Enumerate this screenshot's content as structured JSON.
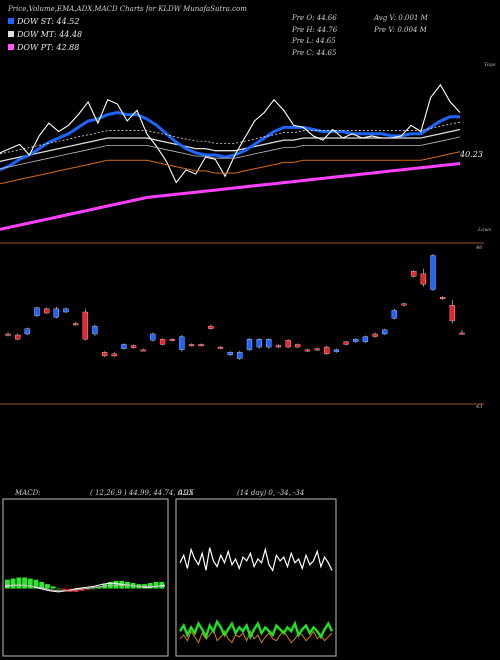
{
  "header": {
    "title": "Price,Volume,EMA,ADX,MACD Charts for KLDW MunafaSutra.com",
    "dow_st": "DOW ST: 44.52",
    "dow_mt": "DOW MT: 44.48",
    "dow_pt": "DOW PT: 42.88",
    "pre_o": "Pre  O: 44.66",
    "pre_h": "Pre  H: 44.76",
    "pre_l": "Pre  L: 44.65",
    "pre_c": "Pre  C: 44.65",
    "avg_v": "Avg V: 0.001 M",
    "pre_v": "Pre  V: 0.004  M"
  },
  "colors": {
    "dow_st": "#1e64ff",
    "dow_mt": "#dddddd",
    "dow_pt": "#ff55ff",
    "up_candle": "#1e64ff",
    "down_candle": "#e8242c",
    "price_line": "#ffffff",
    "ema_blue": "#1e64ff",
    "ema_magenta": "#ff40ff",
    "ema_orange": "#d56a1a",
    "divider": "#a0521a",
    "macd_hist": "#2ce82c",
    "adx_green": "#22e022",
    "adx_orange": "#d57a1a"
  },
  "price_panel": {
    "top_label": "Tops",
    "low_label": "Lows",
    "last_label": "40.23",
    "tick_top": "46",
    "tick_bottom": "43"
  },
  "chart_data": [
    {
      "type": "line",
      "title": "Price,Volume,EMA,ADX,MACD Charts for KLDW MunafaSutra.com",
      "series": [
        {
          "name": "Price",
          "values": [
            40.6,
            40.8,
            41.0,
            40.5,
            41.4,
            42.0,
            41.6,
            41.9,
            42.4,
            43.0,
            42.0,
            43.1,
            42.9,
            42.1,
            42.6,
            41.5,
            40.9,
            40.2,
            39.2,
            39.8,
            39.6,
            40.4,
            40.3,
            39.5,
            40.5,
            41.3,
            42.1,
            42.5,
            43.1,
            42.6,
            41.9,
            41.8,
            41.4,
            41.2,
            41.7,
            41.3,
            41.5,
            41.3,
            41.4,
            41.3,
            41.3,
            41.4,
            41.9,
            41.6,
            43.2,
            43.8,
            43.0,
            42.5
          ]
        },
        {
          "name": "DOW ST",
          "values": [
            39.8,
            40.0,
            40.3,
            40.5,
            40.8,
            41.1,
            41.3,
            41.5,
            41.8,
            42.1,
            42.2,
            42.4,
            42.5,
            42.4,
            42.4,
            42.2,
            41.9,
            41.5,
            41.1,
            40.8,
            40.6,
            40.5,
            40.5,
            40.4,
            40.5,
            40.7,
            41.0,
            41.3,
            41.6,
            41.8,
            41.8,
            41.8,
            41.7,
            41.6,
            41.6,
            41.6,
            41.5,
            41.5,
            41.5,
            41.5,
            41.4,
            41.4,
            41.5,
            41.5,
            41.8,
            42.1,
            42.3,
            42.3
          ]
        },
        {
          "name": "DOW MT",
          "values": [
            40.2,
            40.3,
            40.4,
            40.5,
            40.6,
            40.7,
            40.8,
            40.9,
            41.0,
            41.1,
            41.2,
            41.3,
            41.3,
            41.3,
            41.3,
            41.3,
            41.2,
            41.1,
            41.0,
            40.9,
            40.8,
            40.8,
            40.7,
            40.7,
            40.7,
            40.8,
            40.9,
            41.0,
            41.1,
            41.2,
            41.2,
            41.3,
            41.3,
            41.3,
            41.3,
            41.3,
            41.3,
            41.3,
            41.3,
            41.3,
            41.3,
            41.3,
            41.3,
            41.3,
            41.4,
            41.5,
            41.6,
            41.7
          ]
        },
        {
          "name": "DOW PT",
          "values": [
            37.0,
            37.1,
            37.2,
            37.3,
            37.4,
            37.5,
            37.6,
            37.7,
            37.8,
            37.9,
            38.0,
            38.1,
            38.2,
            38.3,
            38.4,
            38.5,
            38.55,
            38.6,
            38.65,
            38.7,
            38.75,
            38.8,
            38.85,
            38.9,
            38.95,
            39.0,
            39.05,
            39.1,
            39.15,
            39.2,
            39.25,
            39.3,
            39.35,
            39.4,
            39.45,
            39.5,
            39.55,
            39.6,
            39.65,
            39.7,
            39.75,
            39.8,
            39.85,
            39.9,
            39.95,
            40.0,
            40.05,
            40.1
          ]
        }
      ],
      "ylim": [
        36.5,
        44.5
      ]
    },
    {
      "type": "bar",
      "title": "",
      "candles": [
        {
          "o": 44.3,
          "c": 44.28,
          "h": 44.33,
          "l": 44.25,
          "up": false
        },
        {
          "o": 44.2,
          "c": 44.28,
          "h": 44.31,
          "l": 44.18,
          "up": false
        },
        {
          "o": 44.4,
          "c": 44.3,
          "h": 44.42,
          "l": 44.28,
          "up": true
        },
        {
          "o": 44.8,
          "c": 44.65,
          "h": 44.82,
          "l": 44.62,
          "up": true
        },
        {
          "o": 44.78,
          "c": 44.7,
          "h": 44.8,
          "l": 44.68,
          "up": false
        },
        {
          "o": 44.78,
          "c": 44.62,
          "h": 44.82,
          "l": 44.6,
          "up": true
        },
        {
          "o": 44.78,
          "c": 44.72,
          "h": 44.8,
          "l": 44.7,
          "up": true
        },
        {
          "o": 44.5,
          "c": 44.48,
          "h": 44.53,
          "l": 44.46,
          "up": false
        },
        {
          "o": 44.72,
          "c": 44.2,
          "h": 44.78,
          "l": 44.18,
          "up": false
        },
        {
          "o": 44.45,
          "c": 44.3,
          "h": 44.48,
          "l": 44.26,
          "up": true
        },
        {
          "o": 43.95,
          "c": 43.88,
          "h": 43.97,
          "l": 43.86,
          "up": false
        },
        {
          "o": 43.92,
          "c": 43.88,
          "h": 43.95,
          "l": 43.86,
          "up": false
        },
        {
          "o": 44.1,
          "c": 44.02,
          "h": 44.12,
          "l": 44.0,
          "up": true
        },
        {
          "o": 44.08,
          "c": 44.04,
          "h": 44.1,
          "l": 44.02,
          "up": false
        },
        {
          "o": 44.0,
          "c": 44.0,
          "h": 44.02,
          "l": 43.98,
          "up": false
        },
        {
          "o": 44.3,
          "c": 44.18,
          "h": 44.33,
          "l": 44.16,
          "up": true
        },
        {
          "o": 44.2,
          "c": 44.1,
          "h": 44.22,
          "l": 44.08,
          "up": false
        },
        {
          "o": 44.2,
          "c": 44.18,
          "h": 44.22,
          "l": 44.16,
          "up": false
        },
        {
          "o": 44.25,
          "c": 44.0,
          "h": 44.28,
          "l": 43.96,
          "up": true
        },
        {
          "o": 44.1,
          "c": 44.08,
          "h": 44.12,
          "l": 44.06,
          "up": false
        },
        {
          "o": 44.1,
          "c": 44.08,
          "h": 44.12,
          "l": 44.06,
          "up": false
        },
        {
          "o": 44.45,
          "c": 44.4,
          "h": 44.48,
          "l": 44.38,
          "up": false
        },
        {
          "o": 44.05,
          "c": 44.03,
          "h": 44.07,
          "l": 44.01,
          "up": false
        },
        {
          "o": 43.95,
          "c": 43.9,
          "h": 43.97,
          "l": 43.88,
          "up": true
        },
        {
          "o": 43.95,
          "c": 43.83,
          "h": 43.98,
          "l": 43.8,
          "up": true
        },
        {
          "o": 44.2,
          "c": 44.0,
          "h": 44.22,
          "l": 43.98,
          "up": true
        },
        {
          "o": 44.2,
          "c": 44.05,
          "h": 44.22,
          "l": 44.02,
          "up": true
        },
        {
          "o": 44.2,
          "c": 44.05,
          "h": 44.22,
          "l": 44.02,
          "up": true
        },
        {
          "o": 44.08,
          "c": 44.05,
          "h": 44.1,
          "l": 44.03,
          "up": false
        },
        {
          "o": 44.18,
          "c": 44.05,
          "h": 44.2,
          "l": 44.03,
          "up": false
        },
        {
          "o": 44.1,
          "c": 44.05,
          "h": 44.12,
          "l": 44.03,
          "up": false
        },
        {
          "o": 44.0,
          "c": 43.98,
          "h": 44.02,
          "l": 43.96,
          "up": false
        },
        {
          "o": 44.02,
          "c": 44.0,
          "h": 44.04,
          "l": 43.98,
          "up": false
        },
        {
          "o": 44.05,
          "c": 43.92,
          "h": 44.08,
          "l": 43.9,
          "up": false
        },
        {
          "o": 44.0,
          "c": 43.96,
          "h": 44.02,
          "l": 43.94,
          "up": true
        },
        {
          "o": 44.15,
          "c": 44.1,
          "h": 44.17,
          "l": 44.08,
          "up": false
        },
        {
          "o": 44.2,
          "c": 44.15,
          "h": 44.22,
          "l": 44.13,
          "up": true
        },
        {
          "o": 44.25,
          "c": 44.15,
          "h": 44.27,
          "l": 44.13,
          "up": true
        },
        {
          "o": 44.3,
          "c": 44.25,
          "h": 44.33,
          "l": 44.23,
          "up": false
        },
        {
          "o": 44.38,
          "c": 44.3,
          "h": 44.4,
          "l": 44.28,
          "up": true
        },
        {
          "o": 44.75,
          "c": 44.6,
          "h": 44.78,
          "l": 44.58,
          "up": true
        },
        {
          "o": 44.88,
          "c": 44.85,
          "h": 44.9,
          "l": 44.83,
          "up": false
        },
        {
          "o": 45.5,
          "c": 45.4,
          "h": 45.52,
          "l": 45.38,
          "up": false
        },
        {
          "o": 45.45,
          "c": 45.25,
          "h": 45.55,
          "l": 45.2,
          "up": false
        },
        {
          "o": 45.8,
          "c": 45.15,
          "h": 45.83,
          "l": 45.12,
          "up": true
        },
        {
          "o": 45.0,
          "c": 44.97,
          "h": 45.02,
          "l": 44.95,
          "up": false
        },
        {
          "o": 44.85,
          "c": 44.55,
          "h": 44.95,
          "l": 44.5,
          "up": false
        },
        {
          "o": 44.32,
          "c": 44.32,
          "h": 44.38,
          "l": 44.3,
          "up": false
        }
      ],
      "ylim": [
        43.0,
        46.0
      ]
    },
    {
      "type": "line",
      "title": "MACD:",
      "subtitle": "( 12,26,9 ) 44.99,  44.74,  0.25",
      "series": [
        {
          "name": "MACD",
          "values": [
            0.02,
            0.03,
            0.03,
            0.02,
            0.0,
            -0.02,
            -0.03,
            -0.02,
            0.0,
            0.01,
            0.02,
            0.04,
            0.05,
            0.04,
            0.03,
            0.02,
            0.01,
            0.02,
            0.03
          ]
        },
        {
          "name": "Signal",
          "values": [
            0.03,
            0.03,
            0.03,
            0.02,
            0.01,
            -0.01,
            -0.02,
            -0.02,
            -0.01,
            0.0,
            0.01,
            0.02,
            0.03,
            0.03,
            0.03,
            0.02,
            0.02,
            0.02,
            0.02
          ]
        }
      ],
      "histogram": [
        0.08,
        0.09,
        0.1,
        0.1,
        0.09,
        0.08,
        0.06,
        0.04,
        0.02,
        0.0,
        -0.02,
        -0.03,
        -0.03,
        -0.02,
        -0.01,
        0.0,
        0.02,
        0.04,
        0.06,
        0.07,
        0.07,
        0.06,
        0.05,
        0.04,
        0.04,
        0.05,
        0.06,
        0.06
      ],
      "ylim": [
        -0.6,
        0.8
      ]
    },
    {
      "type": "line",
      "title": "ADX",
      "subtitle": "(14 day) 0,  -34,  -34",
      "series": [
        {
          "name": "ADX",
          "values": [
            48,
            52,
            45,
            55,
            50,
            47,
            53,
            44,
            56,
            49,
            46,
            52,
            48,
            54,
            47,
            50,
            45,
            51,
            49,
            53,
            46,
            50,
            48,
            55,
            47,
            44,
            52,
            49,
            51,
            46,
            53,
            48,
            50,
            45,
            52,
            47,
            49,
            54,
            46,
            51,
            48,
            44
          ]
        },
        {
          "name": "+DI",
          "values": [
            12,
            15,
            10,
            14,
            11,
            16,
            13,
            9,
            15,
            12,
            17,
            14,
            10,
            13,
            16,
            11,
            14,
            12,
            15,
            9,
            13,
            16,
            11,
            14,
            12,
            10,
            15,
            13,
            11,
            14,
            12,
            16,
            10,
            13,
            15,
            11,
            14,
            12,
            9,
            13,
            16,
            12
          ]
        },
        {
          "name": "-DI",
          "values": [
            8,
            10,
            7,
            12,
            9,
            6,
            11,
            8,
            10,
            13,
            7,
            9,
            12,
            8,
            6,
            10,
            9,
            11,
            7,
            12,
            8,
            10,
            6,
            9,
            11,
            8,
            7,
            10,
            12,
            9,
            6,
            8,
            11,
            10,
            7,
            9,
            12,
            8,
            10,
            7,
            9,
            11
          ]
        }
      ],
      "ylim": [
        0,
        80
      ]
    }
  ]
}
